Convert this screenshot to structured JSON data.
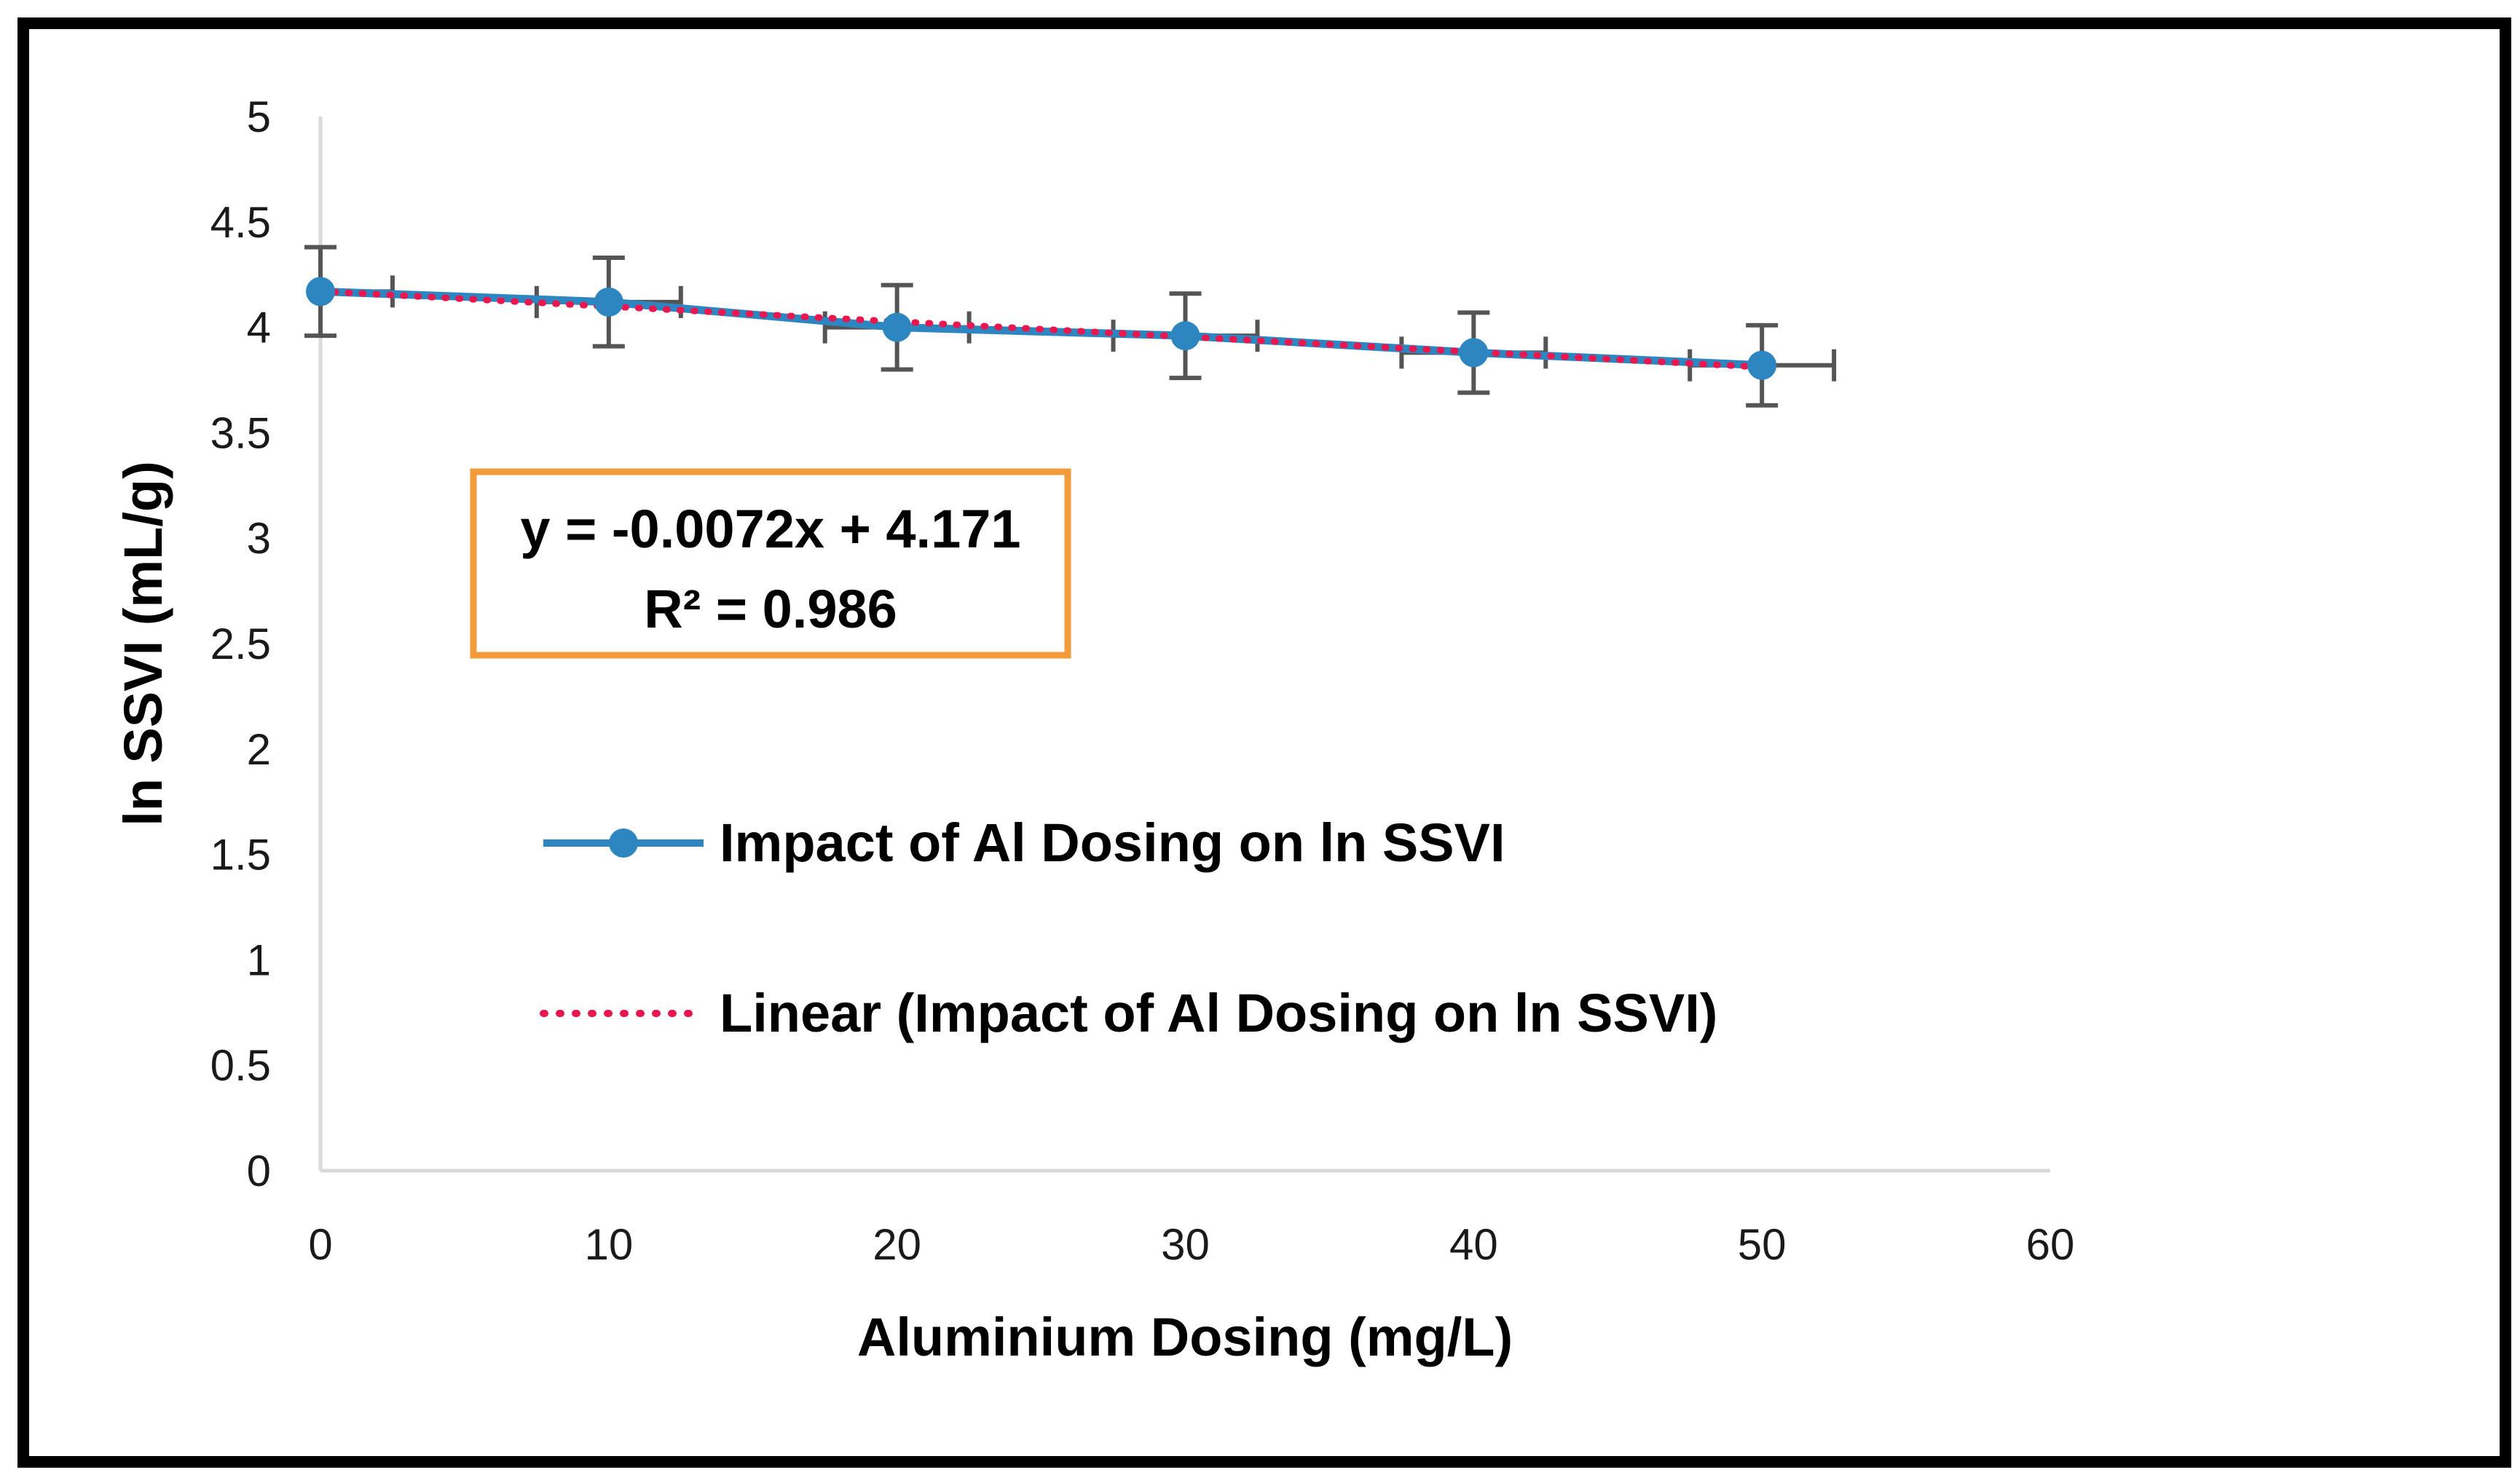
{
  "chart_data": {
    "type": "line",
    "title": "",
    "xlabel": "Aluminium Dosing (mg/L)",
    "ylabel": "ln SSVI (mL/g)",
    "xlim": [
      0,
      60
    ],
    "ylim": [
      0,
      5
    ],
    "x_ticks": [
      0,
      10,
      20,
      30,
      40,
      50,
      60
    ],
    "y_ticks": [
      0,
      0.5,
      1,
      1.5,
      2,
      2.5,
      3,
      3.5,
      4,
      4.5,
      5
    ],
    "x_tick_labels": [
      "0",
      "10",
      "20",
      "30",
      "40",
      "50",
      "60"
    ],
    "y_tick_labels": [
      "0",
      "0.5",
      "1",
      "1.5",
      "2",
      "2.5",
      "3",
      "3.5",
      "4",
      "4.5",
      "5"
    ],
    "grid": false,
    "series": [
      {
        "name": "Impact of Al Dosing on ln SSVI",
        "x": [
          0,
          10,
          20,
          30,
          40,
          50
        ],
        "y": [
          4.17,
          4.12,
          4.0,
          3.96,
          3.88,
          3.82
        ],
        "y_error": [
          0.21,
          0.21,
          0.2,
          0.2,
          0.19,
          0.19
        ],
        "x_error": [
          2.5,
          2.5,
          2.5,
          2.5,
          2.5,
          2.5
        ],
        "color": "#2e86c1",
        "marker": "circle"
      },
      {
        "name": "Linear (Impact of Al Dosing on ln SSVI)",
        "trendline": {
          "slope": -0.0072,
          "intercept": 4.171
        },
        "color": "#e8174f",
        "style": "dotted"
      }
    ],
    "annotation": {
      "equation": "y = -0.0072x + 4.171",
      "r_squared": "R² = 0.986",
      "box_color": "#f39a3a"
    },
    "legend_position": "center",
    "axis_color": "#d9d9d9",
    "error_bar_color": "#555555"
  }
}
